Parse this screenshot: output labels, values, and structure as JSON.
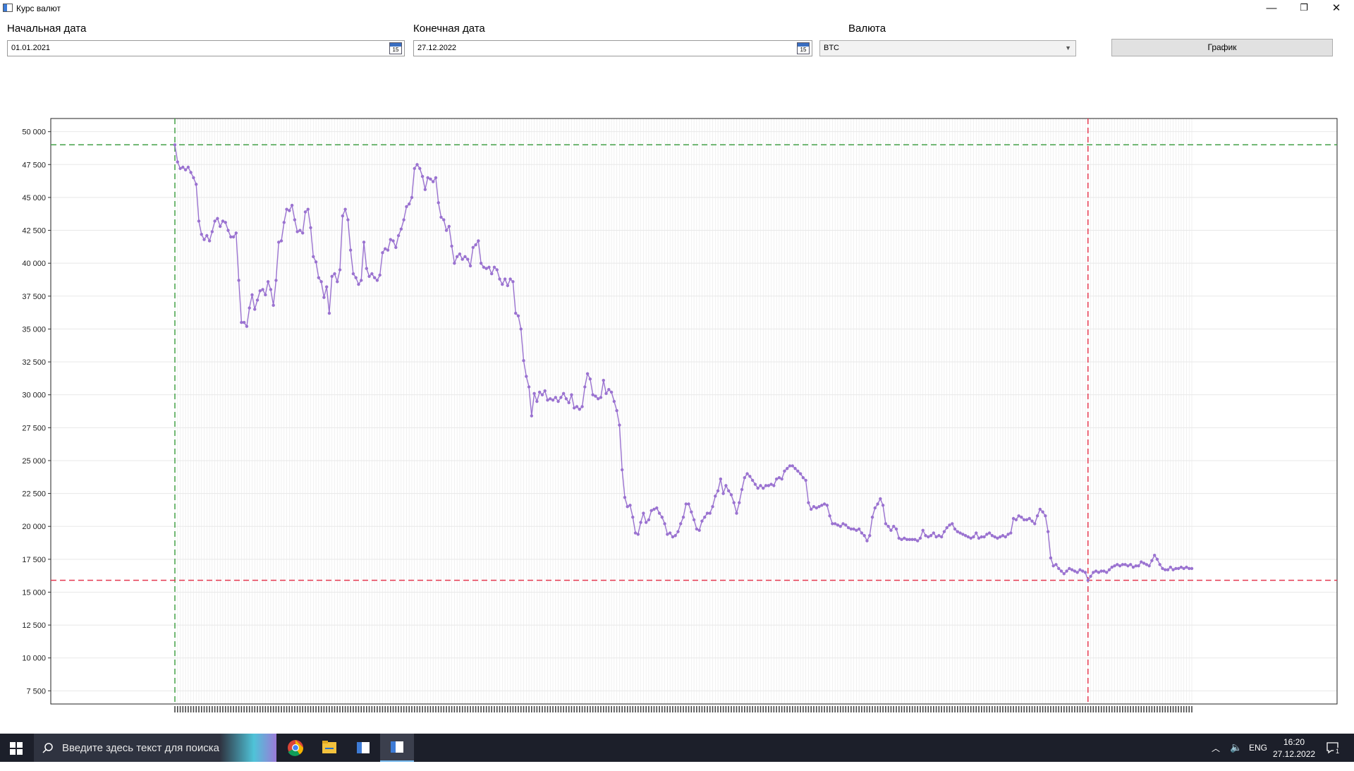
{
  "window": {
    "title": "Курс валют",
    "minimize_glyph": "—",
    "restore_glyph": "❐",
    "close_glyph": "✕"
  },
  "form": {
    "start_label": "Начальная дата",
    "start_value": "01.01.2021",
    "end_label": "Конечная дата",
    "end_value": "27.12.2022",
    "currency_label": "Валюта",
    "currency_value": "BTC",
    "calendar_icon_text": "15",
    "chart_button_label": "График"
  },
  "colors": {
    "line": "#9a72d0",
    "max_marker": "#43a047",
    "min_marker": "#e53950",
    "grid": "#e8e8e8"
  },
  "chart_data": {
    "type": "line",
    "title": "",
    "xlabel": "",
    "ylabel": "",
    "ylim": [
      6500,
      51000
    ],
    "yticks": [
      7500,
      10000,
      12500,
      15000,
      17500,
      20000,
      22500,
      25000,
      27500,
      30000,
      32500,
      35000,
      37500,
      40000,
      42500,
      45000,
      47500,
      50000
    ],
    "ytick_labels": [
      "7 500",
      "10 000",
      "12 500",
      "15 000",
      "17 500",
      "20 000",
      "22 500",
      "25 000",
      "27 500",
      "30 000",
      "32 500",
      "35 000",
      "37 500",
      "40 000",
      "42 500",
      "45 000",
      "47 500",
      "50 000"
    ],
    "grid": true,
    "max_value": 49000,
    "min_value": 15900,
    "series": [
      {
        "values": [
          49000,
          47700,
          47200,
          47300,
          47100,
          47300,
          46900,
          46500,
          46000,
          43200,
          42200,
          41800,
          42100,
          41700,
          42400,
          43200,
          43400,
          42800,
          43200,
          43100,
          42500,
          42000,
          42000,
          42300,
          38700,
          35500,
          35500,
          35200,
          36600,
          37600,
          36500,
          37200,
          37900,
          38000,
          37600,
          38600,
          38000,
          36800,
          38700,
          41600,
          41700,
          43100,
          44100,
          44000,
          44400,
          43300,
          42400,
          42500,
          42300,
          43900,
          44100,
          42700,
          40500,
          40100,
          38900,
          38600,
          37400,
          38200,
          36200,
          39000,
          39200,
          38600,
          39500,
          43600,
          44100,
          43300,
          41000,
          39200,
          38900,
          38400,
          38700,
          41600,
          39600,
          39000,
          39200,
          38900,
          38700,
          39100,
          40800,
          41100,
          41000,
          41800,
          41700,
          41200,
          42100,
          42600,
          43300,
          44300,
          44500,
          45000,
          47200,
          47500,
          47200,
          46600,
          45600,
          46500,
          46400,
          46200,
          46500,
          44600,
          43500,
          43300,
          42500,
          42800,
          41300,
          40000,
          40500,
          40700,
          40300,
          40500,
          40300,
          39800,
          41200,
          41400,
          41700,
          40000,
          39700,
          39600,
          39700,
          39200,
          39700,
          39500,
          38800,
          38400,
          38800,
          38300,
          38800,
          38600,
          36200,
          36000,
          35000,
          32600,
          31400,
          30600,
          28400,
          30100,
          29500,
          30200,
          30000,
          30300,
          29600,
          29700,
          29600,
          29800,
          29500,
          29800,
          30100,
          29700,
          29400,
          30000,
          29000,
          29100,
          28900,
          29100,
          30600,
          31600,
          31200,
          30000,
          29900,
          29700,
          29800,
          31100,
          30100,
          30400,
          30200,
          29500,
          28800,
          27700,
          24300,
          22200,
          21500,
          21600,
          20700,
          19500,
          19400,
          20300,
          21000,
          20300,
          20500,
          21200,
          21300,
          21400,
          21000,
          20700,
          20200,
          19400,
          19500,
          19200,
          19300,
          19600,
          20200,
          20700,
          21700,
          21700,
          21100,
          20500,
          19800,
          19700,
          20400,
          20700,
          21000,
          21000,
          21500,
          22300,
          22700,
          23600,
          22500,
          23100,
          22700,
          22400,
          21800,
          21000,
          21800,
          22800,
          23700,
          24000,
          23800,
          23500,
          23200,
          22900,
          23100,
          22900,
          23100,
          23100,
          23200,
          23100,
          23600,
          23700,
          23600,
          24200,
          24400,
          24600,
          24600,
          24400,
          24200,
          24000,
          23700,
          23500,
          21800,
          21300,
          21500,
          21400,
          21500,
          21600,
          21700,
          21600,
          20800,
          20200,
          20200,
          20100,
          20000,
          20200,
          20100,
          19900,
          19800,
          19800,
          19700,
          19800,
          19500,
          19300,
          18900,
          19300,
          20700,
          21400,
          21700,
          22100,
          21600,
          20200,
          20000,
          19700,
          20000,
          19800,
          19100,
          19000,
          19100,
          19000,
          19000,
          19000,
          19000,
          18900,
          19100,
          19700,
          19300,
          19200,
          19300,
          19500,
          19200,
          19300,
          19200,
          19600,
          19900,
          20100,
          20200,
          19800,
          19600,
          19500,
          19400,
          19300,
          19200,
          19100,
          19200,
          19500,
          19100,
          19200,
          19200,
          19400,
          19500,
          19300,
          19200,
          19100,
          19200,
          19300,
          19200,
          19400,
          19500,
          20600,
          20500,
          20800,
          20700,
          20500,
          20500,
          20600,
          20400,
          20200,
          20800,
          21300,
          21100,
          20800,
          19600,
          17600,
          17000,
          17100,
          16800,
          16600,
          16400,
          16600,
          16800,
          16700,
          16600,
          16500,
          16700,
          16600,
          16500,
          15900,
          16200,
          16500,
          16600,
          16500,
          16600,
          16600,
          16500,
          16700,
          16900,
          17000,
          17100,
          17000,
          17100,
          17100,
          17000,
          17100,
          16900,
          17000,
          17000,
          17300,
          17200,
          17100,
          17000,
          17400,
          17800,
          17500,
          17100,
          16800,
          16700,
          16700,
          16900,
          16700,
          16800,
          16800,
          16900,
          16800,
          16900,
          16800,
          16800
        ]
      }
    ]
  },
  "taskbar": {
    "search_placeholder": "Введите здесь текст для поиска",
    "language": "ENG",
    "time": "16:20",
    "date": "27.12.2022",
    "notification_count": "1"
  }
}
